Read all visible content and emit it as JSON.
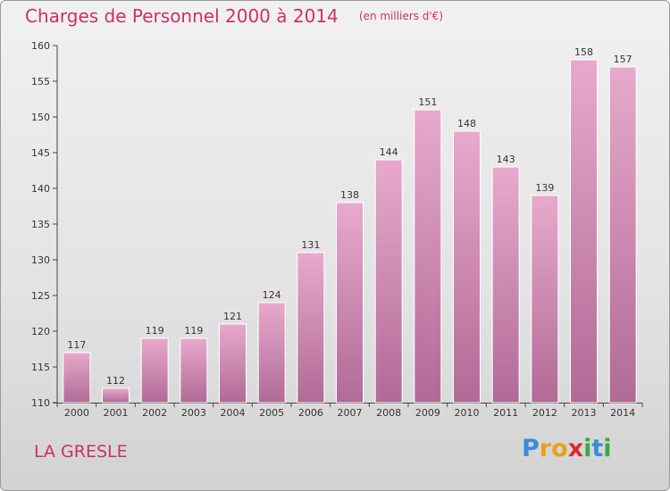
{
  "header": {
    "title": "Charges de Personnel 2000 à 2014",
    "subtitle": "(en milliers d'€)"
  },
  "footer": {
    "commune": "LA GRESLE",
    "logo_letters": [
      {
        "ch": "P",
        "color": "#3a8ed8"
      },
      {
        "ch": "r",
        "color": "#e8a11a"
      },
      {
        "ch": "o",
        "color": "#e8a11a"
      },
      {
        "ch": "x",
        "color": "#e2282c"
      },
      {
        "ch": "i",
        "color": "#3aa843"
      },
      {
        "ch": "t",
        "color": "#3a8ed8"
      },
      {
        "ch": "i",
        "color": "#3aa843"
      }
    ]
  },
  "colors": {
    "bar_top": "#e8a9cc",
    "bar_bottom": "#b06a96",
    "bar_edge": "#ffffff",
    "accent": "#cc2f6a"
  },
  "chart_data": {
    "type": "bar",
    "title": "Charges de Personnel 2000 à 2014",
    "subtitle": "(en milliers d'€)",
    "categories": [
      "2000",
      "2001",
      "2002",
      "2003",
      "2004",
      "2005",
      "2006",
      "2007",
      "2008",
      "2009",
      "2010",
      "2011",
      "2012",
      "2013",
      "2014"
    ],
    "values": [
      117,
      112,
      119,
      119,
      121,
      124,
      131,
      138,
      144,
      151,
      148,
      143,
      139,
      158,
      157
    ],
    "ylim": [
      110,
      160
    ],
    "yticks": [
      110,
      115,
      120,
      125,
      130,
      135,
      140,
      145,
      150,
      155,
      160
    ],
    "grid": false,
    "legend": "none"
  }
}
